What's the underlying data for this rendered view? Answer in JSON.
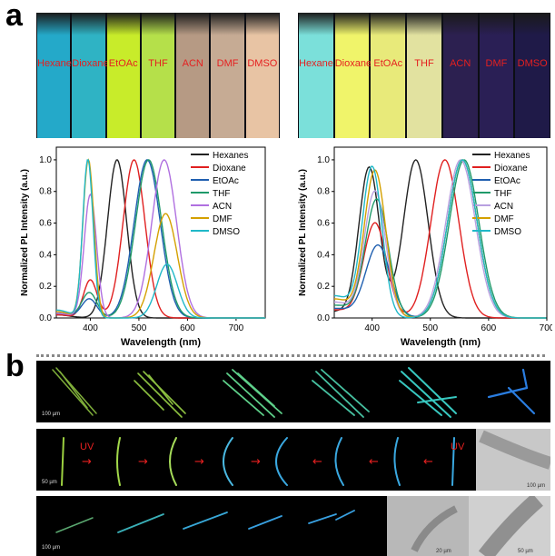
{
  "panel_a_label": "a",
  "panel_b_label": "b",
  "vials_left": {
    "solvents": [
      "Hexane",
      "Dioxane",
      "EtOAc",
      "THF",
      "ACN",
      "DMF",
      "DMSO"
    ],
    "colors": [
      "#24a9c9",
      "#2fb3c4",
      "#c8ec2a",
      "#b5e04a",
      "#b69a84",
      "#c6ab94",
      "#e8c4a4"
    ]
  },
  "vials_right": {
    "solvents": [
      "Hexane",
      "Dioxane",
      "EtOAc",
      "THF",
      "ACN",
      "DMF",
      "DMSO"
    ],
    "colors": [
      "#7be0da",
      "#f0f46a",
      "#e8ea7a",
      "#e2e2a0",
      "#2c2050",
      "#2a1f55",
      "#1f1a48"
    ]
  },
  "chart_data": [
    {
      "type": "line",
      "xlabel": "Wavelength (nm)",
      "ylabel": "Normalized PL Intensity (a.u.)",
      "xlim": [
        330,
        760
      ],
      "ylim": [
        0,
        1.08
      ],
      "xticks": [
        400,
        500,
        600,
        700
      ],
      "yticks": [
        "0.0",
        "0.2",
        "0.4",
        "0.6",
        "0.8",
        "1.0"
      ],
      "legend_position": "top-right",
      "series": [
        {
          "name": "Hexanes",
          "color": "#222222",
          "peaks": [
            [
              455,
              1.0,
              28
            ]
          ],
          "base": 0.02
        },
        {
          "name": "Dioxane",
          "color": "#e02020",
          "peaks": [
            [
              400,
              0.24,
              20
            ],
            [
              490,
              1.0,
              32
            ]
          ],
          "base": 0.02
        },
        {
          "name": "EtOAc",
          "color": "#1f5fb0",
          "peaks": [
            [
              398,
              0.12,
              22
            ],
            [
              517,
              1.0,
              38
            ]
          ],
          "base": 0.03
        },
        {
          "name": "THF",
          "color": "#1f9a6a",
          "peaks": [
            [
              398,
              0.16,
              22
            ],
            [
              520,
              1.0,
              38
            ]
          ],
          "base": 0.03
        },
        {
          "name": "ACN",
          "color": "#b070e0",
          "peaks": [
            [
              400,
              0.78,
              18
            ],
            [
              552,
              1.0,
              36
            ]
          ],
          "base": 0.03
        },
        {
          "name": "DMF",
          "color": "#d4a000",
          "peaks": [
            [
              396,
              1.0,
              16
            ],
            [
              555,
              0.66,
              34
            ]
          ],
          "base": 0.04
        },
        {
          "name": "DMSO",
          "color": "#20b8c8",
          "peaks": [
            [
              395,
              1.0,
              15
            ],
            [
              558,
              0.34,
              30
            ]
          ],
          "base": 0.05
        }
      ]
    },
    {
      "type": "line",
      "xlabel": "Wavelength (nm)",
      "ylabel": "Normalized PL Intensity (a.u.)",
      "xlim": [
        335,
        700
      ],
      "ylim": [
        0,
        1.08
      ],
      "xticks": [
        400,
        500,
        600,
        700
      ],
      "yticks": [
        "0.0",
        "0.2",
        "0.4",
        "0.6",
        "0.8",
        "1.0"
      ],
      "legend_position": "top-right",
      "series": [
        {
          "name": "Hexanes",
          "color": "#222222",
          "peaks": [
            [
              395,
              0.95,
              25
            ],
            [
              475,
              1.0,
              30
            ]
          ],
          "base": 0.04
        },
        {
          "name": "Dioxane",
          "color": "#e02020",
          "peaks": [
            [
              405,
              0.6,
              28
            ],
            [
              525,
              1.0,
              34
            ]
          ],
          "base": 0.05
        },
        {
          "name": "EtOAc",
          "color": "#1f5fb0",
          "peaks": [
            [
              410,
              0.46,
              30
            ],
            [
              555,
              1.0,
              36
            ]
          ],
          "base": 0.06
        },
        {
          "name": "THF",
          "color": "#1f9a6a",
          "peaks": [
            [
              408,
              0.75,
              28
            ],
            [
              558,
              1.0,
              36
            ]
          ],
          "base": 0.08
        },
        {
          "name": "ACN",
          "color": "#b8a0e0",
          "peaks": [
            [
              405,
              0.8,
              26
            ],
            [
              552,
              1.0,
              36
            ]
          ],
          "base": 0.1
        },
        {
          "name": "DMF",
          "color": "#d4a000",
          "peaks": [
            [
              405,
              0.93,
              26
            ],
            [
              555,
              1.0,
              36
            ]
          ],
          "base": 0.12
        },
        {
          "name": "DMSO",
          "color": "#20b8c8",
          "peaks": [
            [
              400,
              0.95,
              24
            ],
            [
              555,
              1.0,
              36
            ]
          ],
          "base": 0.14
        }
      ]
    }
  ],
  "micro": {
    "row1_scale": "100 µm",
    "row2_scale": "50 µm",
    "row3_scale": "100 µm",
    "uv_label": "UV",
    "right_arrow": "→",
    "left_arrow": "←",
    "sem_scale_1": "100 µm",
    "sem_scale_2": "20 µm",
    "sem_scale_3": "50 µm"
  }
}
